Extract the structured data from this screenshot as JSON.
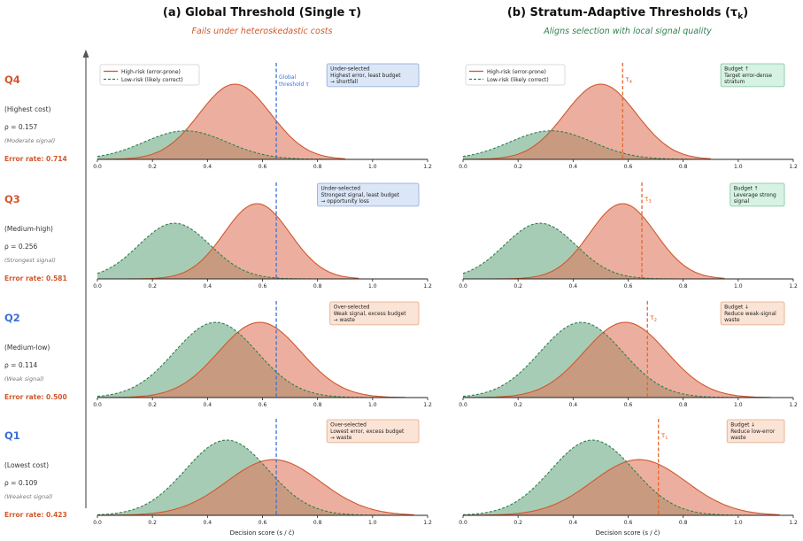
{
  "colors": {
    "high": "#e07a5f",
    "high_line": "#d0572f",
    "low": "#6aaa83",
    "low_line": "#2f7f4f",
    "global_line": "#3b72d9",
    "adaptive_line": "#e8652a",
    "q_orange": "#d2572a",
    "q_blue": "#3b6fd6",
    "subtitle_left": "#d2572a",
    "subtitle_right": "#2f7f4f",
    "box_blue_bg": "#dbe6f7",
    "box_blue_border": "#8da8d8",
    "box_orange_bg": "#fbe3d5",
    "box_orange_border": "#e3a684",
    "box_green_bg": "#d6f2e3",
    "box_green_border": "#7cc39b"
  },
  "titles": {
    "left": "(a) Global Threshold (Single τ)",
    "right_prefix": "(b) Stratum-Adaptive Thresholds (τ",
    "right_sub": "k",
    "right_suffix": ")",
    "left_sub": "Fails under heteroskedastic costs",
    "right_sub_caption": "Aligns selection with local signal quality"
  },
  "legend": {
    "high": "High-risk (error-prone)",
    "low": "Low-risk (likely correct)"
  },
  "xlabel": "Decision score (s / č)",
  "global_threshold_label": [
    "Global",
    "threshold τ"
  ],
  "strata": [
    {
      "name": "Q4",
      "cost": "(Highest cost)",
      "rho": "ρ = 0.157",
      "signal": "(Moderate signal)",
      "error": "Error rate: 0.714",
      "color": "q_orange"
    },
    {
      "name": "Q3",
      "cost": "(Medium-high)",
      "rho": "ρ = 0.256",
      "signal": "(Strongest signal)",
      "error": "Error rate: 0.581",
      "color": "q_orange"
    },
    {
      "name": "Q2",
      "cost": "(Medium-low)",
      "rho": "ρ = 0.114",
      "signal": "(Weak signal)",
      "error": "Error rate: 0.500",
      "color": "q_blue"
    },
    {
      "name": "Q1",
      "cost": "(Lowest cost)",
      "rho": "ρ = 0.109",
      "signal": "(Weakest signal)",
      "error": "Error rate: 0.423",
      "color": "q_blue"
    }
  ],
  "chart_data": {
    "type": "area",
    "xlim": [
      0,
      1.2
    ],
    "xticks": [
      "0.0",
      "0.2",
      "0.4",
      "0.6",
      "0.8",
      "1.0",
      "1.2"
    ],
    "global_tau": 0.65,
    "panels": [
      {
        "stratum": "Q4",
        "high": {
          "mean": 0.5,
          "sd": 0.13,
          "peak": 1.0,
          "xmax": 0.9
        },
        "low": {
          "mean": 0.32,
          "sd": 0.15,
          "peak": 0.38,
          "xmax": 0.9
        },
        "left_note": [
          "Under-selected",
          "Highest error, least budget",
          "→ shortfall"
        ],
        "left_box": "blue",
        "tau_k": 0.58,
        "tau_label": "τ",
        "tau_sub": "4",
        "right_note": [
          "Budget ↑",
          "Target error-dense",
          "stratum"
        ],
        "right_box": "green"
      },
      {
        "stratum": "Q3",
        "high": {
          "mean": 0.58,
          "sd": 0.12,
          "peak": 1.0,
          "xmax": 0.95
        },
        "low": {
          "mean": 0.28,
          "sd": 0.13,
          "peak": 0.74,
          "xmax": 0.95
        },
        "left_note": [
          "Under-selected",
          "Strongest signal, least budget",
          "→ opportunity loss"
        ],
        "left_box": "blue",
        "tau_k": 0.65,
        "tau_label": "τ",
        "tau_sub": "3",
        "right_note": [
          "Budget ↑",
          "Leverage strong",
          "signal"
        ],
        "right_box": "green"
      },
      {
        "stratum": "Q2",
        "high": {
          "mean": 0.59,
          "sd": 0.15,
          "peak": 1.0,
          "xmax": 1.12
        },
        "low": {
          "mean": 0.43,
          "sd": 0.15,
          "peak": 1.0,
          "xmax": 1.12
        },
        "left_note": [
          "Over-selected",
          "Weak signal, excess budget",
          "→ waste"
        ],
        "left_box": "orange",
        "tau_k": 0.67,
        "tau_label": "τ",
        "tau_sub": "2",
        "right_note": [
          "Budget ↓",
          "Reduce weak-signal",
          "waste"
        ],
        "right_box": "orange"
      },
      {
        "stratum": "Q1",
        "high": {
          "mean": 0.64,
          "sd": 0.17,
          "peak": 0.74,
          "xmax": 1.15
        },
        "low": {
          "mean": 0.47,
          "sd": 0.15,
          "peak": 1.0,
          "xmax": 1.15
        },
        "left_note": [
          "Over-selected",
          "Lowest error, excess budget",
          "→ waste"
        ],
        "left_box": "orange",
        "tau_k": 0.71,
        "tau_label": "τ",
        "tau_sub": "1",
        "right_note": [
          "Budget ↓",
          "Reduce low-error",
          "waste"
        ],
        "right_box": "orange"
      }
    ]
  }
}
